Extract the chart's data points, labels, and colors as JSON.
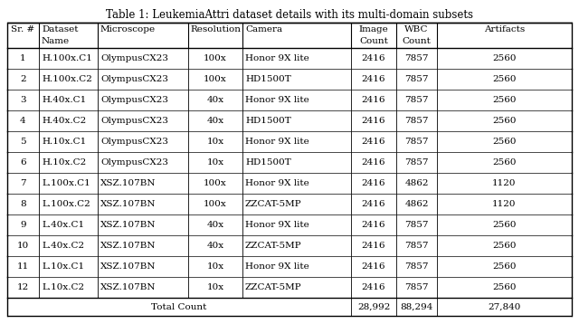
{
  "title": "Table 1: LeukemiaAttri dataset details with its multi-domain subsets",
  "headers_line1": [
    "Sr. #",
    "Dataset",
    "Microscope",
    "Resolution",
    "Camera",
    "Image",
    "WBC",
    "Artifacts"
  ],
  "headers_line2": [
    "",
    "Name",
    "",
    "",
    "",
    "Count",
    "Count",
    ""
  ],
  "rows": [
    [
      "1",
      "H.100x.C1",
      "OlympusCX23",
      "100x",
      "Honor 9X lite",
      "2416",
      "7857",
      "2560"
    ],
    [
      "2",
      "H.100x.C2",
      "OlympusCX23",
      "100x",
      "HD1500T",
      "2416",
      "7857",
      "2560"
    ],
    [
      "3",
      "H.40x.C1",
      "OlympusCX23",
      "40x",
      "Honor 9X lite",
      "2416",
      "7857",
      "2560"
    ],
    [
      "4",
      "H.40x.C2",
      "OlympusCX23",
      "40x",
      "HD1500T",
      "2416",
      "7857",
      "2560"
    ],
    [
      "5",
      "H.10x.C1",
      "OlympusCX23",
      "10x",
      "Honor 9X lite",
      "2416",
      "7857",
      "2560"
    ],
    [
      "6",
      "H.10x.C2",
      "OlympusCX23",
      "10x",
      "HD1500T",
      "2416",
      "7857",
      "2560"
    ],
    [
      "7",
      "L.100x.C1",
      "XSZ.107BN",
      "100x",
      "Honor 9X lite",
      "2416",
      "4862",
      "1120"
    ],
    [
      "8",
      "L.100x.C2",
      "XSZ.107BN",
      "100x",
      "ZZCAT-5MP",
      "2416",
      "4862",
      "1120"
    ],
    [
      "9",
      "L.40x.C1",
      "XSZ.107BN",
      "40x",
      "Honor 9X lite",
      "2416",
      "7857",
      "2560"
    ],
    [
      "10",
      "L.40x.C2",
      "XSZ.107BN",
      "40x",
      "ZZCAT-5MP",
      "2416",
      "7857",
      "2560"
    ],
    [
      "11",
      "L.10x.C1",
      "XSZ.107BN",
      "10x",
      "Honor 9X lite",
      "2416",
      "7857",
      "2560"
    ],
    [
      "12",
      "L.10x.C2",
      "XSZ.107BN",
      "10x",
      "ZZCAT-5MP",
      "2416",
      "7857",
      "2560"
    ]
  ],
  "footer": [
    "Total Count",
    "28,992",
    "88,294",
    "27,840"
  ],
  "bg_color": "#ffffff",
  "line_color": "#000000",
  "font_size": 7.5,
  "title_font_size": 8.5
}
